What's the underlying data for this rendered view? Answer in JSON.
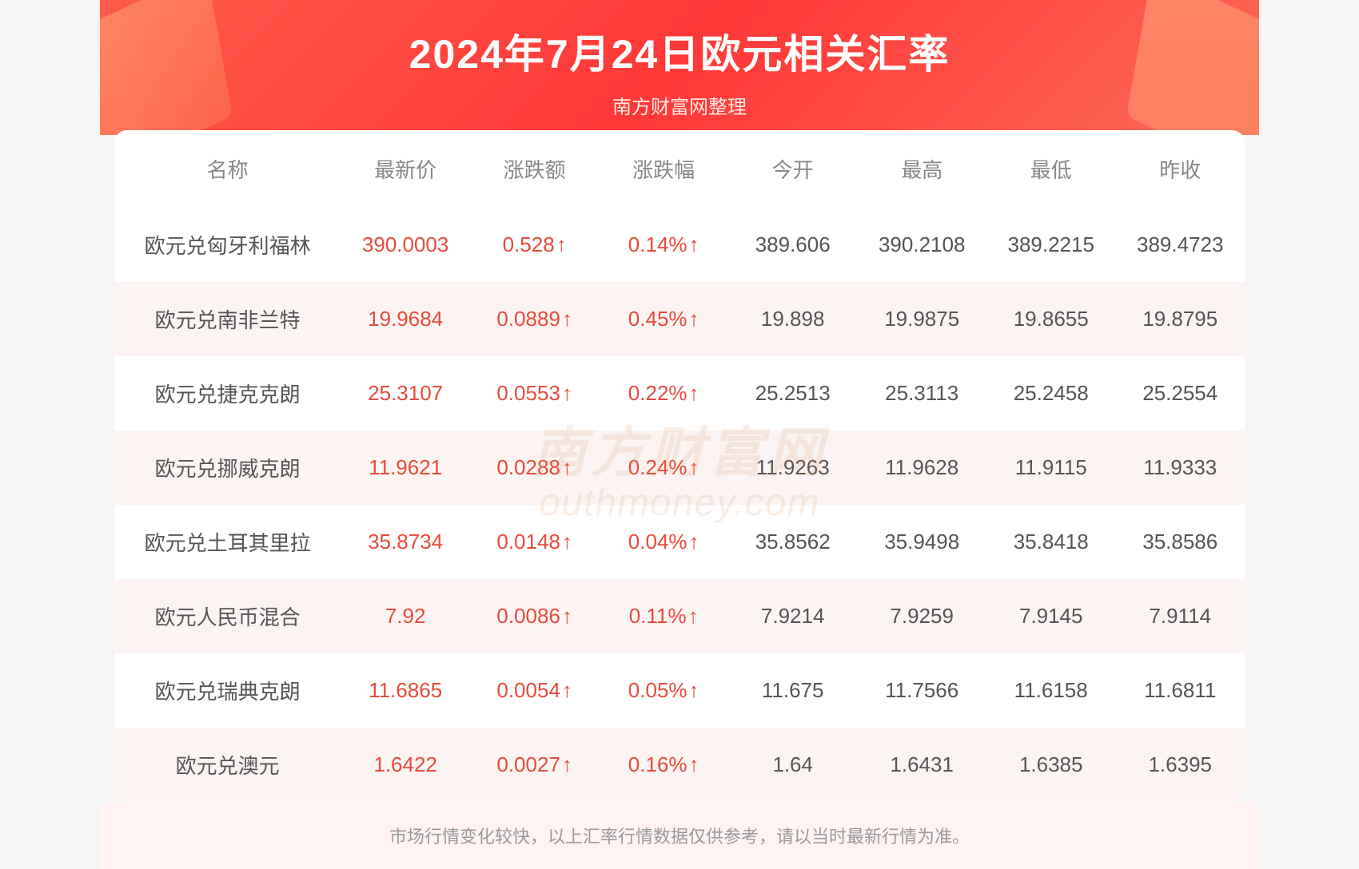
{
  "header": {
    "title": "2024年7月24日欧元相关汇率",
    "subtitle": "南方财富网整理"
  },
  "watermark": {
    "cn": "南方财富网",
    "en": "outhmoney.com"
  },
  "table": {
    "columns": [
      "名称",
      "最新价",
      "涨跌额",
      "涨跌幅",
      "今开",
      "最高",
      "最低",
      "昨收"
    ],
    "rows": [
      {
        "name": "欧元兑匈牙利福林",
        "latest": "390.0003",
        "change": "0.528",
        "changePct": "0.14%",
        "direction": "up",
        "open": "389.606",
        "high": "390.2108",
        "low": "389.2215",
        "prevClose": "389.4723"
      },
      {
        "name": "欧元兑南非兰特",
        "latest": "19.9684",
        "change": "0.0889",
        "changePct": "0.45%",
        "direction": "up",
        "open": "19.898",
        "high": "19.9875",
        "low": "19.8655",
        "prevClose": "19.8795"
      },
      {
        "name": "欧元兑捷克克朗",
        "latest": "25.3107",
        "change": "0.0553",
        "changePct": "0.22%",
        "direction": "up",
        "open": "25.2513",
        "high": "25.3113",
        "low": "25.2458",
        "prevClose": "25.2554"
      },
      {
        "name": "欧元兑挪威克朗",
        "latest": "11.9621",
        "change": "0.0288",
        "changePct": "0.24%",
        "direction": "up",
        "open": "11.9263",
        "high": "11.9628",
        "low": "11.9115",
        "prevClose": "11.9333"
      },
      {
        "name": "欧元兑土耳其里拉",
        "latest": "35.8734",
        "change": "0.0148",
        "changePct": "0.04%",
        "direction": "up",
        "open": "35.8562",
        "high": "35.9498",
        "low": "35.8418",
        "prevClose": "35.8586"
      },
      {
        "name": "欧元人民币混合",
        "latest": "7.92",
        "change": "0.0086",
        "changePct": "0.11%",
        "direction": "up",
        "open": "7.9214",
        "high": "7.9259",
        "low": "7.9145",
        "prevClose": "7.9114"
      },
      {
        "name": "欧元兑瑞典克朗",
        "latest": "11.6865",
        "change": "0.0054",
        "changePct": "0.05%",
        "direction": "up",
        "open": "11.675",
        "high": "11.7566",
        "low": "11.6158",
        "prevClose": "11.6811"
      },
      {
        "name": "欧元兑澳元",
        "latest": "1.6422",
        "change": "0.0027",
        "changePct": "0.16%",
        "direction": "up",
        "open": "1.64",
        "high": "1.6431",
        "low": "1.6385",
        "prevClose": "1.6395"
      }
    ]
  },
  "footer": "市场行情变化较快，以上汇率行情数据仅供参考，请以当时最新行情为准。",
  "colors": {
    "up": "#e84a3a",
    "down": "#0fa862",
    "headerBg": "#ff4a3a",
    "evenRowBg": "#fbf4f3",
    "textGray": "#888888",
    "textDark": "#555555"
  }
}
